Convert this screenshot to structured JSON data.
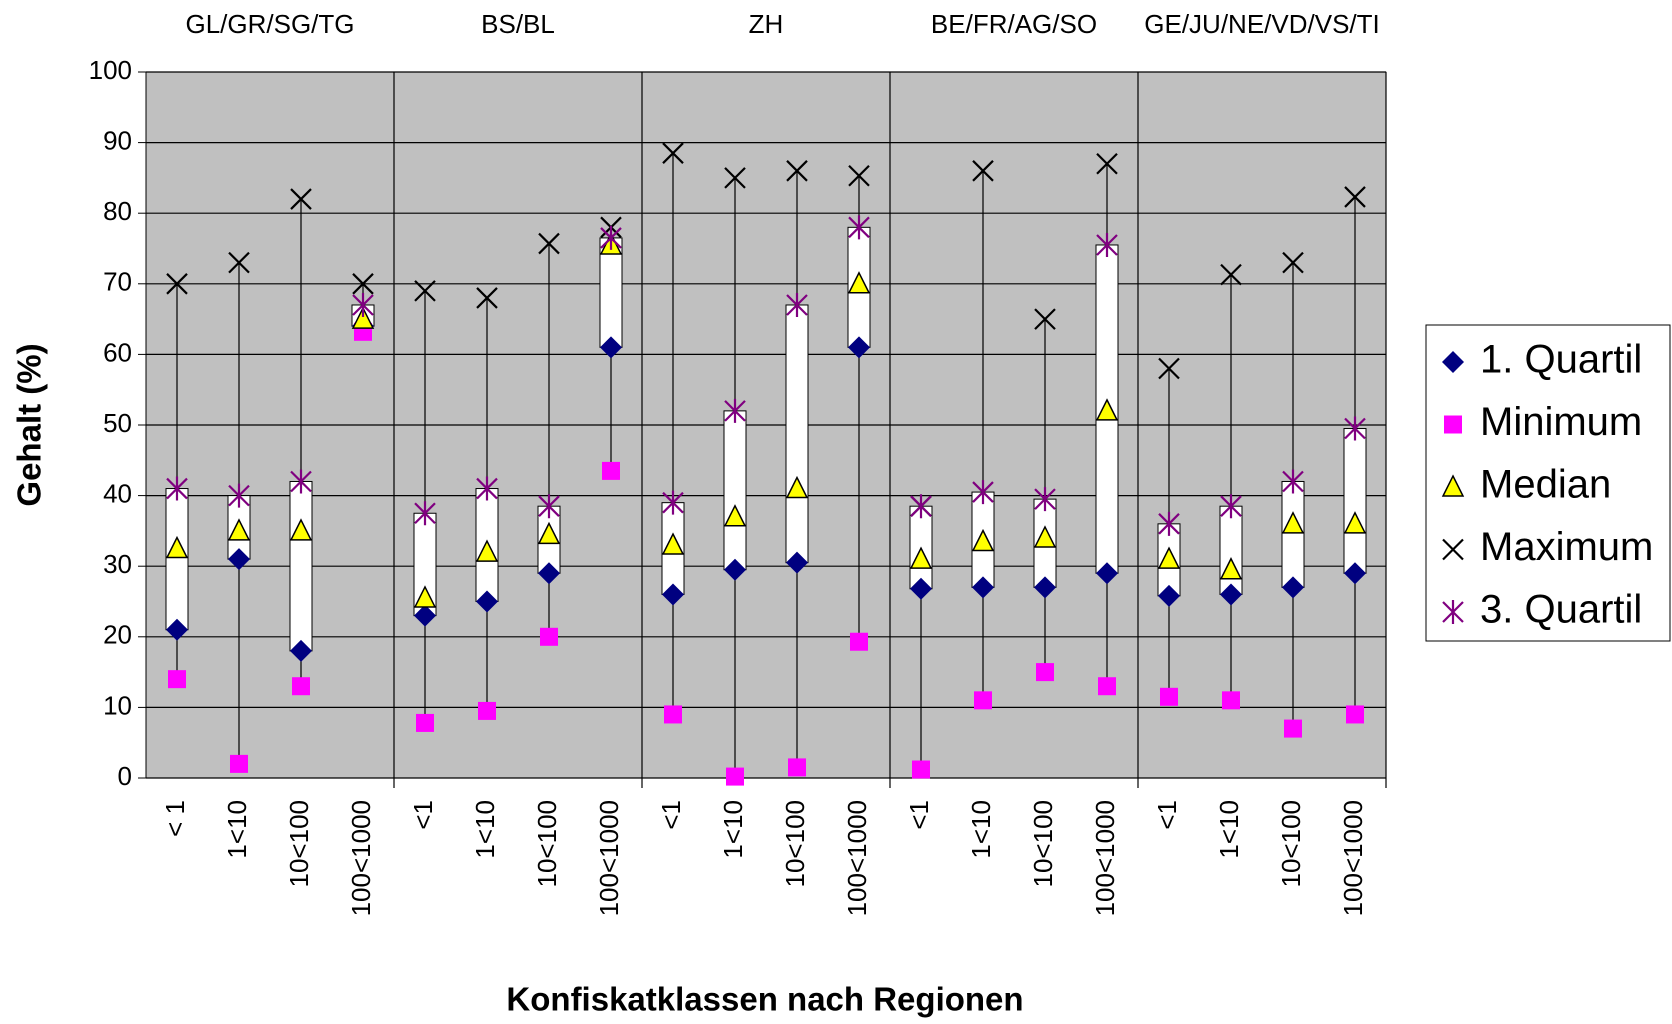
{
  "chart_data": {
    "type": "stock-box",
    "xlabel": "Konfiskatklassen nach Regionen",
    "ylabel": "Gehalt (%)",
    "groups": [
      "GL/GR/SG/TG",
      "BS/BL",
      "ZH",
      "BE/FR/AG/SO",
      "GE/JU/NE/VD/VS/TI"
    ],
    "categories": [
      "< 1",
      "1<10",
      "10<100",
      "100<1000",
      "<1",
      "1<10",
      "10<100",
      "100<1000",
      "<1",
      "1<10",
      "10<100",
      "100<1000",
      "<1",
      "1<10",
      "10<100",
      "100<1000",
      "<1",
      "1<10",
      "10<100",
      "100<1000"
    ],
    "series": [
      {
        "name": "1. Quartil",
        "color": "#000080",
        "marker": "diamond",
        "values": [
          21,
          31,
          18,
          64,
          23,
          25,
          29,
          61,
          26,
          29.5,
          30.5,
          61,
          26.8,
          27,
          27,
          29,
          25.8,
          26,
          27,
          29
        ]
      },
      {
        "name": "Minimum",
        "color": "#ff00ff",
        "marker": "square",
        "values": [
          14,
          2,
          13,
          63.2,
          7.8,
          9.5,
          20,
          43.5,
          9,
          0.2,
          1.5,
          19.3,
          1.2,
          11,
          15,
          13,
          11.5,
          11,
          7,
          9
        ]
      },
      {
        "name": "Median",
        "color": "#ffff00",
        "marker": "triangle",
        "values": [
          32.5,
          35,
          35,
          65,
          25.5,
          32,
          34.5,
          75.5,
          33,
          37,
          41,
          70,
          31,
          33.5,
          34,
          52,
          31,
          29.5,
          36,
          36
        ]
      },
      {
        "name": "Maximum",
        "color": "#000000",
        "marker": "x",
        "values": [
          70,
          73,
          82,
          70,
          69,
          68,
          75.7,
          78,
          88.5,
          85,
          86,
          85.3,
          38.5,
          86,
          65,
          87,
          58,
          71.3,
          73,
          82.3
        ]
      },
      {
        "name": "3. Quartil",
        "color": "#800080",
        "marker": "asterisk",
        "values": [
          41,
          40,
          42,
          67,
          37.5,
          41,
          38.5,
          76.5,
          39,
          52,
          67,
          78,
          38.5,
          40.5,
          39.5,
          75.5,
          36,
          38.5,
          42,
          49.5
        ]
      }
    ],
    "ylim": [
      0,
      100
    ],
    "yticks": [
      0,
      10,
      20,
      30,
      40,
      50,
      60,
      70,
      80,
      90,
      100
    ],
    "grid": true,
    "plot_background": "#c0c0c0",
    "box_color": "#ffffff",
    "legend": "right"
  }
}
